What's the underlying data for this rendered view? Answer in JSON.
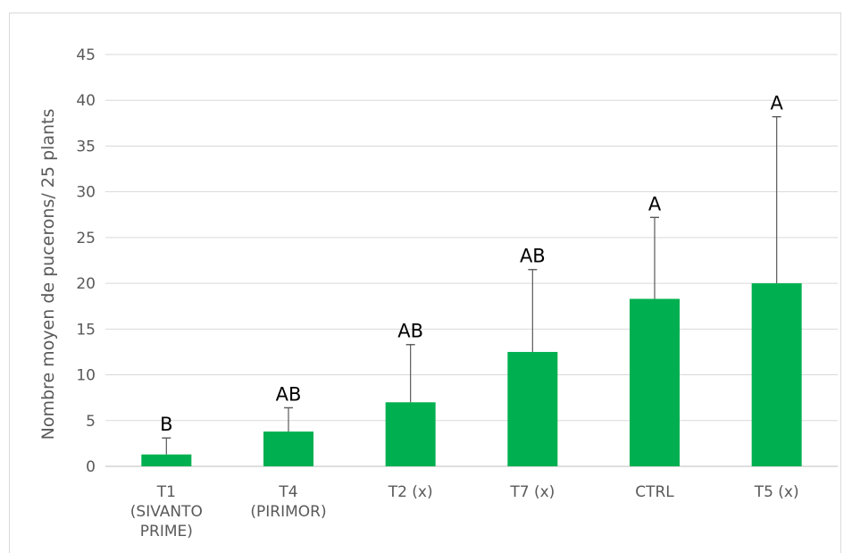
{
  "chart_data": {
    "type": "bar",
    "title": "",
    "xlabel": "",
    "ylabel": "Nombre moyen de pucerons/ 25 plants",
    "ylim": [
      0,
      45
    ],
    "yticks": [
      0,
      5,
      10,
      15,
      20,
      25,
      30,
      35,
      40,
      45
    ],
    "grid": true,
    "legend": "none",
    "bar_color": "#00b050",
    "categories": [
      [
        "T1",
        "(SIVANTO",
        "PRIME)"
      ],
      [
        "T4",
        "(PIRIMOR)"
      ],
      [
        "T2 (x)"
      ],
      [
        "T7 (x)"
      ],
      [
        "CTRL"
      ],
      [
        "T5 (x)"
      ]
    ],
    "values": [
      1.3,
      3.8,
      7.0,
      12.5,
      18.3,
      20.0
    ],
    "error_upper": [
      3.1,
      6.4,
      13.3,
      21.5,
      27.2,
      38.2
    ],
    "significance_labels": [
      "B",
      "AB",
      "AB",
      "AB",
      "A",
      "A"
    ]
  }
}
